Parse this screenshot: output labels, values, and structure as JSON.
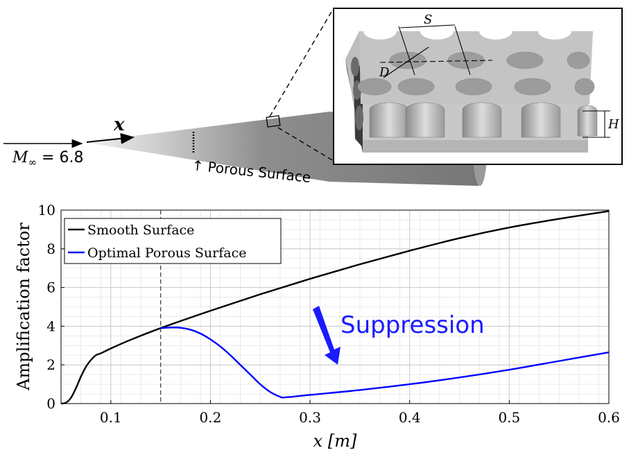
{
  "schematic": {
    "mach_label": "M",
    "mach_sub": "∞",
    "mach_value": " = 6.8",
    "x_label": "x",
    "porous_label": "↑ Porous Surface",
    "inset": {
      "s_label": "S",
      "d_label": "D",
      "h_label": "H"
    }
  },
  "annotation": {
    "text": "Suppression",
    "color": "#1a1aff"
  },
  "chart_data": {
    "type": "line",
    "xlabel": "x [m]",
    "ylabel": "Amplification factor",
    "xlim": [
      0.05,
      0.6
    ],
    "ylim": [
      0,
      10
    ],
    "xticks": [
      0.1,
      0.2,
      0.3,
      0.4,
      0.5,
      0.6
    ],
    "yticks": [
      0,
      2,
      4,
      6,
      8,
      10
    ],
    "xtick_labels": [
      "0.1",
      "0.2",
      "0.3",
      "0.4",
      "0.5",
      "0.6"
    ],
    "ytick_labels": [
      "0",
      "2",
      "4",
      "6",
      "8",
      "10"
    ],
    "grid": true,
    "legend_position": "top-left",
    "vline_x": 0.15,
    "series": [
      {
        "name": "Smooth Surface",
        "color": "#000000",
        "x": [
          0.05,
          0.055,
          0.06,
          0.065,
          0.07,
          0.075,
          0.08,
          0.085,
          0.09,
          0.1,
          0.12,
          0.15,
          0.2,
          0.25,
          0.3,
          0.35,
          0.4,
          0.45,
          0.5,
          0.55,
          0.6
        ],
        "y": [
          0.0,
          0.05,
          0.3,
          0.8,
          1.4,
          1.9,
          2.25,
          2.5,
          2.6,
          2.85,
          3.3,
          3.9,
          4.8,
          5.65,
          6.45,
          7.2,
          7.9,
          8.55,
          9.1,
          9.55,
          9.95
        ]
      },
      {
        "name": "Optimal Porous Surface",
        "color": "#0000ff",
        "x": [
          0.15,
          0.16,
          0.17,
          0.18,
          0.19,
          0.2,
          0.21,
          0.22,
          0.23,
          0.24,
          0.25,
          0.26,
          0.27,
          0.275,
          0.3,
          0.35,
          0.4,
          0.45,
          0.5,
          0.55,
          0.6
        ],
        "y": [
          3.9,
          3.93,
          3.92,
          3.82,
          3.62,
          3.32,
          2.95,
          2.5,
          2.0,
          1.5,
          1.0,
          0.6,
          0.35,
          0.32,
          0.45,
          0.7,
          1.0,
          1.35,
          1.75,
          2.2,
          2.65
        ]
      }
    ]
  }
}
